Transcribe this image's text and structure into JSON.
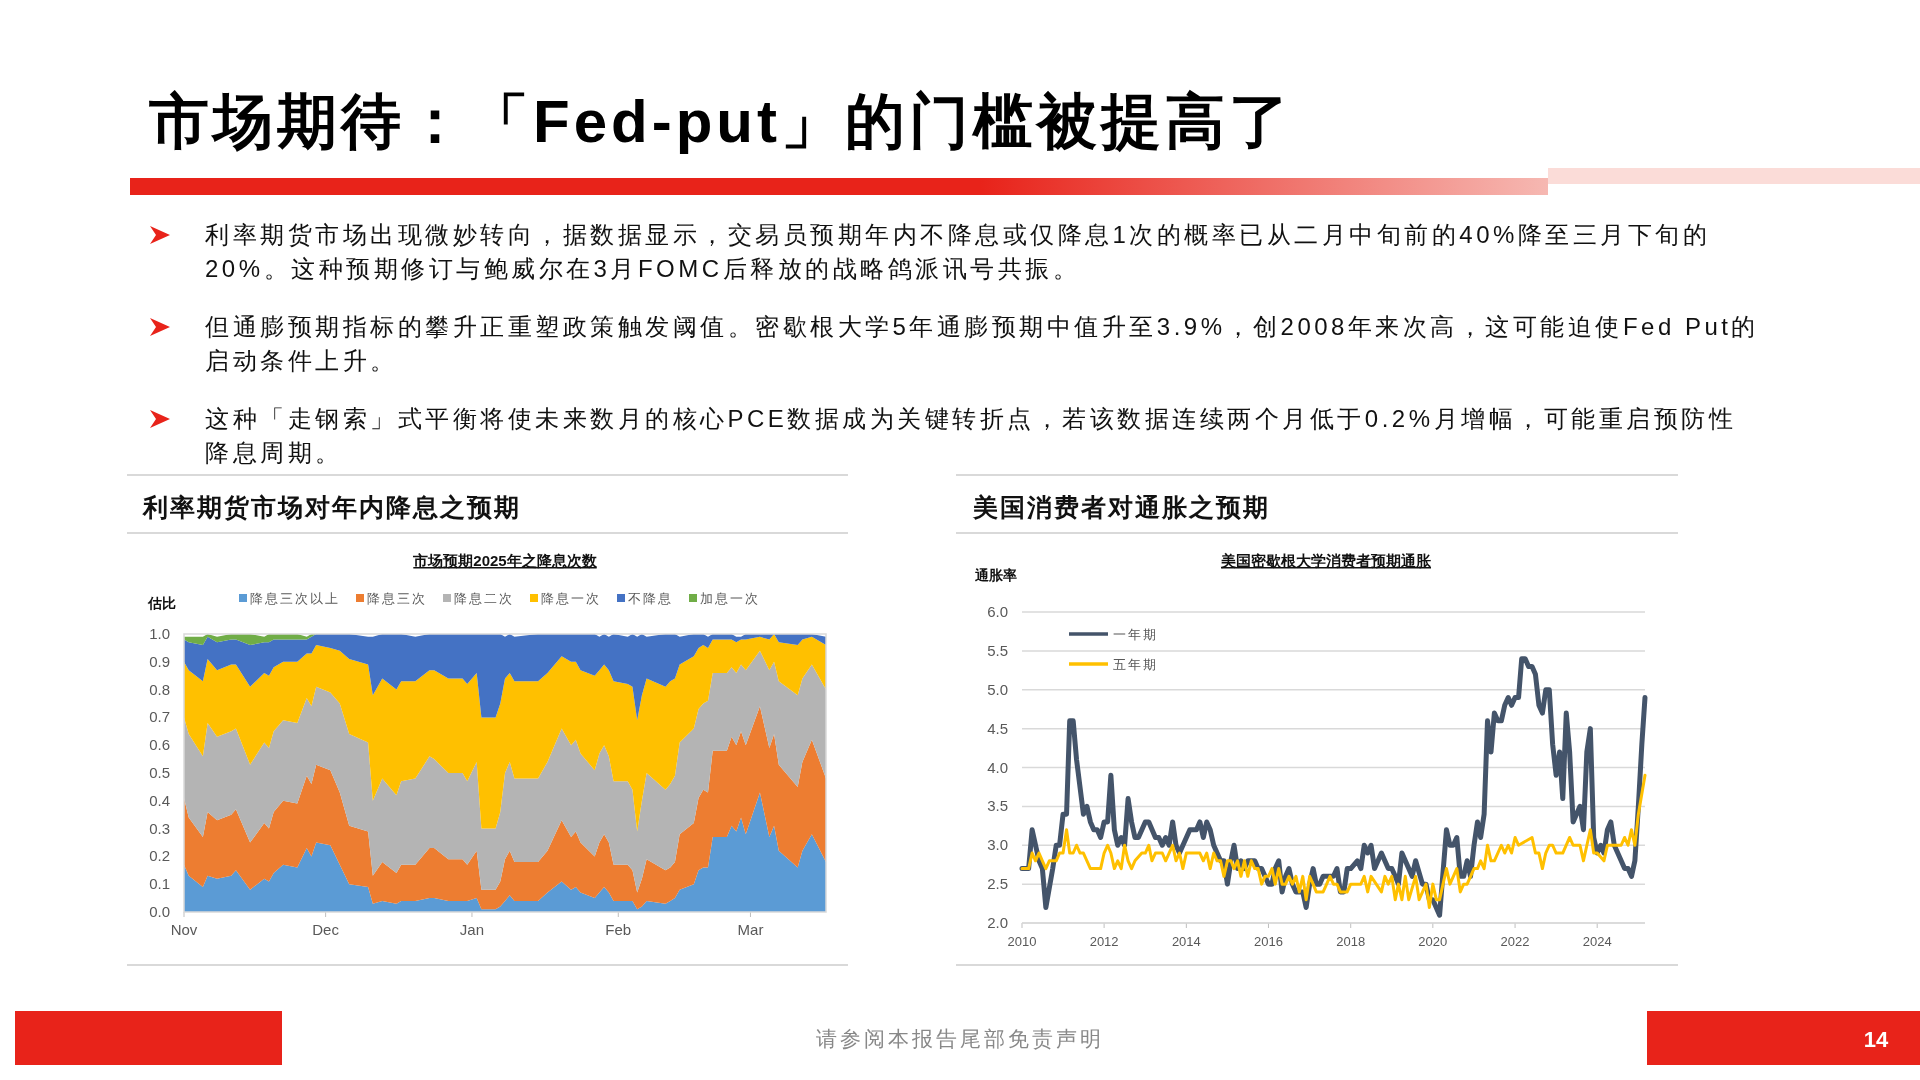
{
  "chart_data": [
    {
      "type": "other",
      "title": "市场期待：「Fed-put」的门槛被提高了",
      "annotations": [
        "利率期货市场出现微妙转向，据数据显示，交易员预期年内不降息或仅降息1次的概率已从二月中旬前的40%降至三月下旬的20%。这种预期修订与鲍威尔在3月FOMC后释放的战略鸽派讯号共振。",
        "但通膨预期指标的攀升正重塑政策触发阈值。密歇根大学5年通膨预期中值升至3.9%，创2008年来次高，这可能迫使Fed Put的启动条件上升。",
        "这种「走钢索」式平衡将使未来数月的核心PCE数据成为关键转折点，若该数据连续两个月低于0.2%月增幅，可能重启预防性降息周期。",
        "请参阅本报告尾部免责声明",
        "14"
      ]
    },
    {
      "type": "area",
      "stacked": true,
      "title": "利率期货市场对年内降息之预期",
      "subtitle": "市场预期2025年之降息次数",
      "ylabel": "估比",
      "legend": "top",
      "x": [
        "2024-11-01",
        "2024-11-02",
        "2024-11-05",
        "2024-11-06",
        "2024-11-08",
        "2024-11-11",
        "2024-11-12",
        "2024-11-15",
        "2024-11-18",
        "2024-11-19",
        "2024-11-20",
        "2024-11-22",
        "2024-11-25",
        "2024-11-27",
        "2024-11-28",
        "2024-11-29",
        "2024-12-02",
        "2024-12-04",
        "2024-12-06",
        "2024-12-10",
        "2024-12-11",
        "2024-12-13",
        "2024-12-16",
        "2024-12-17",
        "2024-12-20",
        "2024-12-23",
        "2024-12-24",
        "2024-12-27",
        "2024-12-30",
        "2024-12-31",
        "2025-01-02",
        "2025-01-03",
        "2025-01-06",
        "2025-01-07",
        "2025-01-08",
        "2025-01-09",
        "2025-01-10",
        "2025-01-15",
        "2025-01-17",
        "2025-01-20",
        "2025-01-22",
        "2025-01-23",
        "2025-01-24",
        "2025-01-27",
        "2025-01-28",
        "2025-01-29",
        "2025-01-30",
        "2025-01-31",
        "2025-02-03",
        "2025-02-04",
        "2025-02-05",
        "2025-02-06",
        "2025-02-07",
        "2025-02-11",
        "2025-02-12",
        "2025-02-13",
        "2025-02-14",
        "2025-02-17",
        "2025-02-18",
        "2025-02-19",
        "2025-02-20",
        "2025-02-21",
        "2025-02-24",
        "2025-02-25",
        "2025-02-26",
        "2025-02-27",
        "2025-02-28",
        "2025-03-03",
        "2025-03-05",
        "2025-03-06",
        "2025-03-07",
        "2025-03-11",
        "2025-03-12",
        "2025-03-14",
        "2025-03-17"
      ],
      "xlim": [
        "2024-11-01",
        "2025-03-17"
      ],
      "xticks": [
        {
          "value": "2024-11-01",
          "label": "Nov"
        },
        {
          "value": "2024-12-01",
          "label": "Dec"
        },
        {
          "value": "2025-01-01",
          "label": "Jan"
        },
        {
          "value": "2025-02-01",
          "label": "Feb"
        },
        {
          "value": "2025-03-01",
          "label": "Mar"
        }
      ],
      "ylim": [
        0,
        1
      ],
      "yticks": [
        {
          "value": 0,
          "label": "0.0"
        },
        0.1,
        0.2,
        0.3,
        0.4,
        0.5,
        0.6,
        0.7,
        0.8,
        0.9,
        {
          "value": 1,
          "label": "1.0"
        }
      ],
      "series": [
        {
          "name": "降息三次以上",
          "color": "#5b9bd5",
          "values": [
            0.17,
            0.13,
            0.09,
            0.13,
            0.12,
            0.13,
            0.15,
            0.08,
            0.12,
            0.11,
            0.14,
            0.17,
            0.16,
            0.23,
            0.2,
            0.25,
            0.24,
            0.17,
            0.1,
            0.09,
            0.03,
            0.04,
            0.03,
            0.04,
            0.04,
            0.05,
            0.05,
            0.04,
            0.04,
            0.04,
            0.05,
            0.01,
            0.01,
            0.02,
            0.04,
            0.06,
            0.04,
            0.04,
            0.07,
            0.11,
            0.08,
            0.09,
            0.07,
            0.05,
            0.07,
            0.09,
            0.07,
            0.04,
            0.04,
            0.04,
            0.01,
            0.02,
            0.04,
            0.03,
            0.04,
            0.05,
            0.08,
            0.1,
            0.15,
            0.16,
            0.16,
            0.27,
            0.27,
            0.31,
            0.29,
            0.34,
            0.28,
            0.43,
            0.27,
            0.31,
            0.22,
            0.16,
            0.22,
            0.28,
            0.18
          ]
        },
        {
          "name": "降息三次",
          "color": "#ed7d31",
          "values": [
            0.24,
            0.21,
            0.18,
            0.23,
            0.21,
            0.22,
            0.22,
            0.17,
            0.2,
            0.19,
            0.22,
            0.23,
            0.23,
            0.26,
            0.26,
            0.28,
            0.27,
            0.26,
            0.21,
            0.2,
            0.1,
            0.14,
            0.11,
            0.13,
            0.13,
            0.18,
            0.18,
            0.15,
            0.15,
            0.13,
            0.17,
            0.07,
            0.07,
            0.09,
            0.15,
            0.16,
            0.14,
            0.14,
            0.15,
            0.22,
            0.19,
            0.2,
            0.18,
            0.15,
            0.18,
            0.19,
            0.18,
            0.13,
            0.13,
            0.11,
            0.06,
            0.1,
            0.15,
            0.12,
            0.12,
            0.13,
            0.2,
            0.22,
            0.26,
            0.28,
            0.27,
            0.31,
            0.31,
            0.32,
            0.31,
            0.31,
            0.32,
            0.31,
            0.32,
            0.33,
            0.31,
            0.29,
            0.32,
            0.34,
            0.3
          ]
        },
        {
          "name": "降息二次",
          "color": "#b4b4b4",
          "values": [
            0.29,
            0.3,
            0.29,
            0.32,
            0.3,
            0.3,
            0.29,
            0.28,
            0.29,
            0.29,
            0.29,
            0.29,
            0.29,
            0.28,
            0.28,
            0.28,
            0.28,
            0.32,
            0.33,
            0.32,
            0.27,
            0.3,
            0.28,
            0.3,
            0.31,
            0.33,
            0.32,
            0.31,
            0.31,
            0.3,
            0.32,
            0.22,
            0.22,
            0.25,
            0.31,
            0.32,
            0.3,
            0.3,
            0.32,
            0.33,
            0.33,
            0.33,
            0.32,
            0.31,
            0.32,
            0.32,
            0.31,
            0.3,
            0.3,
            0.29,
            0.22,
            0.28,
            0.31,
            0.29,
            0.3,
            0.31,
            0.33,
            0.34,
            0.32,
            0.31,
            0.33,
            0.28,
            0.28,
            0.25,
            0.26,
            0.24,
            0.27,
            0.2,
            0.28,
            0.26,
            0.3,
            0.33,
            0.3,
            0.27,
            0.32
          ]
        },
        {
          "name": "降息一次",
          "color": "#ffc000",
          "values": [
            0.2,
            0.23,
            0.27,
            0.23,
            0.24,
            0.24,
            0.23,
            0.28,
            0.25,
            0.26,
            0.23,
            0.21,
            0.22,
            0.16,
            0.19,
            0.15,
            0.16,
            0.19,
            0.27,
            0.28,
            0.38,
            0.36,
            0.38,
            0.36,
            0.35,
            0.31,
            0.32,
            0.34,
            0.34,
            0.35,
            0.32,
            0.4,
            0.4,
            0.39,
            0.34,
            0.32,
            0.35,
            0.35,
            0.32,
            0.26,
            0.3,
            0.28,
            0.3,
            0.34,
            0.3,
            0.29,
            0.31,
            0.36,
            0.35,
            0.37,
            0.4,
            0.38,
            0.34,
            0.37,
            0.37,
            0.35,
            0.28,
            0.26,
            0.22,
            0.21,
            0.19,
            0.12,
            0.12,
            0.1,
            0.11,
            0.09,
            0.11,
            0.05,
            0.11,
            0.1,
            0.14,
            0.18,
            0.14,
            0.1,
            0.16
          ]
        },
        {
          "name": "不降息",
          "color": "#4472c4",
          "values": [
            0.08,
            0.1,
            0.13,
            0.08,
            0.1,
            0.09,
            0.09,
            0.15,
            0.11,
            0.12,
            0.1,
            0.08,
            0.08,
            0.05,
            0.06,
            0.04,
            0.05,
            0.06,
            0.09,
            0.1,
            0.21,
            0.16,
            0.2,
            0.17,
            0.16,
            0.13,
            0.13,
            0.16,
            0.16,
            0.18,
            0.14,
            0.3,
            0.3,
            0.25,
            0.15,
            0.14,
            0.16,
            0.17,
            0.14,
            0.08,
            0.1,
            0.1,
            0.13,
            0.15,
            0.12,
            0.11,
            0.12,
            0.17,
            0.17,
            0.19,
            0.3,
            0.22,
            0.15,
            0.19,
            0.17,
            0.16,
            0.1,
            0.08,
            0.05,
            0.04,
            0.04,
            0.02,
            0.02,
            0.02,
            0.02,
            0.01,
            0.02,
            0.01,
            0.02,
            0,
            0.03,
            0.04,
            0.02,
            0.01,
            0.03
          ]
        },
        {
          "name": "加息一次",
          "color": "#70ad47",
          "values": [
            0.01,
            0.02,
            0.03,
            0.01,
            0.02,
            0.02,
            0.02,
            0.04,
            0.02,
            0.03,
            0.02,
            0.02,
            0.02,
            0.01,
            0.01,
            0,
            0,
            0,
            0,
            0,
            0,
            0,
            0,
            0,
            0,
            0,
            0,
            0,
            0,
            0,
            0,
            0,
            0,
            0,
            0,
            0,
            0,
            0,
            0,
            0,
            0,
            0,
            0,
            0,
            0,
            0,
            0,
            0,
            0,
            0,
            0,
            0,
            0,
            0,
            0,
            0,
            0,
            0,
            0,
            0,
            0,
            0,
            0,
            0,
            0,
            0,
            0,
            0,
            0,
            0,
            0,
            0,
            0,
            0,
            0
          ]
        }
      ]
    },
    {
      "type": "line",
      "title": "美国消费者对通胀之预期",
      "subtitle": "美国密歇根大学消费者预期通胀",
      "ylabel": "通胀率",
      "legend": "top left",
      "grid": "y",
      "xlim": [
        "2010-01",
        "2025-03"
      ],
      "xticks": [
        {
          "value": "2010-01",
          "label": "2010"
        },
        {
          "value": "2012-01",
          "label": "2012"
        },
        {
          "value": "2014-01",
          "label": "2014"
        },
        {
          "value": "2016-01",
          "label": "2016"
        },
        {
          "value": "2018-01",
          "label": "2018"
        },
        {
          "value": "2020-01",
          "label": "2020"
        },
        {
          "value": "2022-01",
          "label": "2022"
        },
        {
          "value": "2024-01",
          "label": "2024"
        }
      ],
      "ylim": [
        2,
        6
      ],
      "yticks": [
        {
          "value": 2,
          "label": "2.0"
        },
        2.5,
        {
          "value": 3,
          "label": "3.0"
        },
        3.5,
        {
          "value": 4,
          "label": "4.0"
        },
        4.5,
        {
          "value": 5,
          "label": "5.0"
        },
        5.5,
        {
          "value": 6,
          "label": "6.0"
        }
      ],
      "series": [
        {
          "name": "一年期",
          "color": "#44546a",
          "x": [
            "2010-01",
            "2010-03",
            "2010-04",
            "2010-06",
            "2010-07",
            "2010-08",
            "2010-10",
            "2010-11",
            "2010-12",
            "2011-01",
            "2011-02",
            "2011-03",
            "2011-04",
            "2011-05",
            "2011-07",
            "2011-08",
            "2011-09",
            "2011-10",
            "2011-11",
            "2011-12",
            "2012-01",
            "2012-02",
            "2012-03",
            "2012-04",
            "2012-05",
            "2012-06",
            "2012-07",
            "2012-08",
            "2012-09",
            "2012-10",
            "2012-11",
            "2013-01",
            "2013-02",
            "2013-04",
            "2013-05",
            "2013-06",
            "2013-07",
            "2013-08",
            "2013-09",
            "2013-10",
            "2013-11",
            "2014-02",
            "2014-04",
            "2014-05",
            "2014-06",
            "2014-07",
            "2014-08",
            "2014-09",
            "2014-11",
            "2014-12",
            "2015-01",
            "2015-02",
            "2015-03",
            "2015-04",
            "2015-05",
            "2015-06",
            "2015-07",
            "2015-09",
            "2015-10",
            "2015-11",
            "2015-12",
            "2016-01",
            "2016-02",
            "2016-03",
            "2016-04",
            "2016-05",
            "2016-06",
            "2016-07",
            "2016-08",
            "2016-09",
            "2016-11",
            "2016-12",
            "2017-01",
            "2017-02",
            "2017-03",
            "2017-04",
            "2017-05",
            "2017-08",
            "2017-09",
            "2017-10",
            "2017-11",
            "2017-12",
            "2018-01",
            "2018-03",
            "2018-04",
            "2018-05",
            "2018-06",
            "2018-07",
            "2018-08",
            "2018-10",
            "2018-12",
            "2019-01",
            "2019-02",
            "2019-03",
            "2019-04",
            "2019-06",
            "2019-07",
            "2019-08",
            "2019-10",
            "2019-11",
            "2019-12",
            "2020-01",
            "2020-03",
            "2020-05",
            "2020-06",
            "2020-07",
            "2020-08",
            "2020-09",
            "2020-10",
            "2020-11",
            "2020-12",
            "2021-01",
            "2021-02",
            "2021-03",
            "2021-04",
            "2021-05",
            "2021-06",
            "2021-07",
            "2021-08",
            "2021-09",
            "2021-10",
            "2021-11",
            "2021-12",
            "2022-01",
            "2022-02",
            "2022-03",
            "2022-04",
            "2022-05",
            "2022-06",
            "2022-07",
            "2022-08",
            "2022-09",
            "2022-10",
            "2022-11",
            "2022-12",
            "2023-01",
            "2023-02",
            "2023-03",
            "2023-04",
            "2023-05",
            "2023-06",
            "2023-07",
            "2023-08",
            "2023-09",
            "2023-10",
            "2023-11",
            "2023-12",
            "2024-01",
            "2024-02",
            "2024-03",
            "2024-04",
            "2024-05",
            "2024-06",
            "2024-09",
            "2024-10",
            "2024-11",
            "2024-12",
            "2025-01",
            "2025-02",
            "2025-03"
          ],
          "values": [
            2.7,
            2.7,
            3.2,
            2.8,
            2.7,
            2.2,
            2.7,
            3.0,
            3.0,
            3.4,
            3.4,
            4.6,
            4.6,
            4.1,
            3.4,
            3.5,
            3.3,
            3.2,
            3.2,
            3.1,
            3.3,
            3.3,
            3.9,
            3.2,
            3.0,
            3.1,
            3.0,
            3.6,
            3.3,
            3.1,
            3.1,
            3.3,
            3.3,
            3.1,
            3.1,
            3.0,
            3.1,
            3.0,
            3.3,
            3.0,
            2.9,
            3.2,
            3.2,
            3.3,
            3.1,
            3.3,
            3.2,
            3.0,
            2.8,
            2.8,
            2.5,
            2.8,
            3.0,
            2.7,
            2.8,
            2.7,
            2.8,
            2.8,
            2.7,
            2.7,
            2.6,
            2.5,
            2.5,
            2.7,
            2.8,
            2.4,
            2.6,
            2.7,
            2.5,
            2.4,
            2.4,
            2.2,
            2.5,
            2.7,
            2.5,
            2.5,
            2.6,
            2.6,
            2.7,
            2.4,
            2.4,
            2.7,
            2.7,
            2.8,
            2.7,
            3.0,
            2.9,
            3.0,
            2.7,
            2.9,
            2.7,
            2.7,
            2.6,
            2.5,
            2.9,
            2.7,
            2.6,
            2.8,
            2.5,
            2.5,
            2.3,
            2.3,
            2.1,
            3.2,
            3.0,
            3.0,
            3.1,
            2.6,
            2.6,
            2.8,
            2.6,
            3.0,
            3.3,
            3.1,
            3.4,
            4.6,
            4.2,
            4.7,
            4.6,
            4.6,
            4.8,
            4.9,
            4.8,
            4.9,
            4.9,
            5.4,
            5.4,
            5.3,
            5.3,
            5.2,
            4.8,
            4.7,
            5.0,
            5.0,
            4.3,
            3.9,
            4.2,
            3.6,
            4.7,
            4.2,
            3.3,
            3.4,
            3.5,
            3.2,
            4.2,
            4.5,
            3.1,
            2.9,
            3.0,
            2.9,
            3.2,
            3.3,
            3.0,
            2.7,
            2.7,
            2.6,
            2.8,
            3.5,
            4.3,
            4.9
          ]
        },
        {
          "name": "五年期",
          "color": "#ffc000",
          "x": [
            "2010-01",
            "2010-03",
            "2010-04",
            "2010-05",
            "2010-06",
            "2010-07",
            "2010-08",
            "2010-09",
            "2010-11",
            "2010-12",
            "2011-01",
            "2011-02",
            "2011-03",
            "2011-04",
            "2011-05",
            "2011-06",
            "2011-07",
            "2011-08",
            "2011-09",
            "2011-12",
            "2012-01",
            "2012-02",
            "2012-03",
            "2012-04",
            "2012-05",
            "2012-06",
            "2012-07",
            "2012-08",
            "2012-09",
            "2012-10",
            "2012-12",
            "2013-01",
            "2013-02",
            "2013-03",
            "2013-04",
            "2013-06",
            "2013-07",
            "2013-08",
            "2013-09",
            "2013-10",
            "2013-11",
            "2013-12",
            "2014-01",
            "2014-05",
            "2014-06",
            "2014-07",
            "2014-08",
            "2014-09",
            "2014-10",
            "2014-11",
            "2014-12",
            "2015-01",
            "2015-02",
            "2015-03",
            "2015-04",
            "2015-05",
            "2015-06",
            "2015-07",
            "2015-08",
            "2015-09",
            "2015-10",
            "2015-11",
            "2015-12",
            "2016-01",
            "2016-02",
            "2016-03",
            "2016-04",
            "2016-05",
            "2016-06",
            "2016-07",
            "2016-08",
            "2016-09",
            "2016-10",
            "2016-11",
            "2016-12",
            "2017-01",
            "2017-02",
            "2017-03",
            "2017-04",
            "2017-05",
            "2017-06",
            "2017-07",
            "2017-08",
            "2017-09",
            "2017-10",
            "2017-11",
            "2017-12",
            "2018-01",
            "2018-04",
            "2018-05",
            "2018-06",
            "2018-07",
            "2018-10",
            "2018-11",
            "2018-12",
            "2019-01",
            "2019-02",
            "2019-03",
            "2019-04",
            "2019-05",
            "2019-06",
            "2019-08",
            "2019-09",
            "2019-11",
            "2019-12",
            "2020-01",
            "2020-02",
            "2020-03",
            "2020-05",
            "2020-06",
            "2020-08",
            "2020-09",
            "2020-10",
            "2020-11",
            "2021-01",
            "2021-02",
            "2021-03",
            "2021-04",
            "2021-05",
            "2021-06",
            "2021-07",
            "2021-09",
            "2021-10",
            "2021-11",
            "2021-12",
            "2022-01",
            "2022-02",
            "2022-06",
            "2022-07",
            "2022-08",
            "2022-09",
            "2022-10",
            "2022-11",
            "2022-12",
            "2023-01",
            "2023-03",
            "2023-05",
            "2023-06",
            "2023-08",
            "2023-09",
            "2023-11",
            "2023-12",
            "2024-01",
            "2024-03",
            "2024-04",
            "2024-08",
            "2024-09",
            "2024-10",
            "2024-11",
            "2024-12",
            "2025-01",
            "2025-03"
          ],
          "values": [
            2.7,
            2.7,
            2.9,
            2.8,
            2.9,
            2.8,
            2.7,
            2.8,
            2.8,
            2.9,
            2.9,
            3.2,
            2.9,
            2.9,
            3.0,
            2.9,
            2.9,
            2.8,
            2.7,
            2.7,
            2.9,
            3.0,
            2.9,
            2.7,
            2.8,
            2.7,
            3.0,
            2.8,
            2.7,
            2.8,
            2.9,
            2.9,
            3.0,
            2.8,
            2.9,
            2.9,
            2.8,
            2.9,
            3.0,
            2.8,
            2.9,
            2.7,
            2.9,
            2.9,
            2.8,
            2.9,
            2.7,
            2.9,
            2.8,
            2.8,
            2.6,
            2.8,
            2.8,
            2.7,
            2.8,
            2.6,
            2.8,
            2.6,
            2.8,
            2.7,
            2.7,
            2.5,
            2.6,
            2.6,
            2.7,
            2.5,
            2.7,
            2.5,
            2.5,
            2.6,
            2.5,
            2.6,
            2.4,
            2.6,
            2.3,
            2.6,
            2.5,
            2.4,
            2.4,
            2.4,
            2.5,
            2.6,
            2.5,
            2.5,
            2.4,
            2.4,
            2.4,
            2.5,
            2.5,
            2.6,
            2.4,
            2.6,
            2.4,
            2.6,
            2.5,
            2.6,
            2.3,
            2.5,
            2.3,
            2.6,
            2.3,
            2.6,
            2.3,
            2.5,
            2.2,
            2.5,
            2.3,
            2.3,
            2.7,
            2.5,
            2.7,
            2.4,
            2.5,
            2.5,
            2.7,
            2.7,
            2.8,
            2.7,
            3.0,
            2.8,
            2.8,
            3.0,
            2.9,
            3.0,
            2.9,
            3.1,
            3.0,
            3.1,
            2.9,
            2.9,
            2.7,
            2.9,
            3.0,
            3.0,
            2.9,
            2.9,
            3.1,
            3.0,
            3.0,
            2.8,
            3.2,
            2.9,
            2.9,
            2.8,
            3.0,
            3.0,
            3.1,
            3.0,
            3.2,
            3.0,
            3.4,
            3.9
          ]
        }
      ]
    }
  ]
}
